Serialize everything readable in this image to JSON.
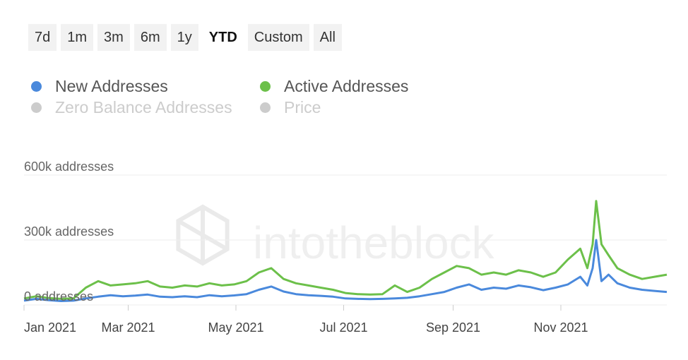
{
  "range_buttons": [
    {
      "label": "7d",
      "active": false
    },
    {
      "label": "1m",
      "active": false
    },
    {
      "label": "3m",
      "active": false
    },
    {
      "label": "6m",
      "active": false
    },
    {
      "label": "1y",
      "active": false
    },
    {
      "label": "YTD",
      "active": true
    },
    {
      "label": "Custom",
      "active": false
    },
    {
      "label": "All",
      "active": false
    }
  ],
  "legend": [
    {
      "name": "New Addresses",
      "color": "#4a89dc",
      "enabled": true
    },
    {
      "name": "Active Addresses",
      "color": "#6cc04a",
      "enabled": true
    },
    {
      "name": "Zero Balance Addresses",
      "color": "#cccccc",
      "enabled": false
    },
    {
      "name": "Price",
      "color": "#cccccc",
      "enabled": false
    }
  ],
  "watermark": "intotheblock",
  "chart_data": {
    "type": "line",
    "y_axis": {
      "ticks": [
        0,
        300000,
        600000
      ],
      "tick_labels": [
        "0 addresses",
        "300k addresses",
        "600k addresses"
      ],
      "ylim": [
        0,
        600000
      ]
    },
    "x_axis": {
      "range": [
        "2021-01-01",
        "2021-12-31"
      ],
      "ticks": [
        "2021-01-01",
        "2021-03-01",
        "2021-05-01",
        "2021-07-01",
        "2021-09-01",
        "2021-11-01"
      ],
      "tick_labels": [
        "Jan 2021",
        "Mar 2021",
        "May 2021",
        "Jul 2021",
        "Sep 2021",
        "Nov 2021"
      ]
    },
    "grid": true,
    "legend_position": "top-left",
    "series": [
      {
        "name": "New Addresses",
        "color": "#4a89dc",
        "points": [
          [
            "2021-01-01",
            20000
          ],
          [
            "2021-01-08",
            28000
          ],
          [
            "2021-01-15",
            22000
          ],
          [
            "2021-01-22",
            18000
          ],
          [
            "2021-01-29",
            20000
          ],
          [
            "2021-02-05",
            30000
          ],
          [
            "2021-02-12",
            38000
          ],
          [
            "2021-02-19",
            45000
          ],
          [
            "2021-02-26",
            40000
          ],
          [
            "2021-03-05",
            43000
          ],
          [
            "2021-03-12",
            48000
          ],
          [
            "2021-03-19",
            38000
          ],
          [
            "2021-03-26",
            36000
          ],
          [
            "2021-04-02",
            40000
          ],
          [
            "2021-04-09",
            36000
          ],
          [
            "2021-04-16",
            45000
          ],
          [
            "2021-04-23",
            40000
          ],
          [
            "2021-04-30",
            44000
          ],
          [
            "2021-05-07",
            50000
          ],
          [
            "2021-05-14",
            70000
          ],
          [
            "2021-05-21",
            85000
          ],
          [
            "2021-05-28",
            62000
          ],
          [
            "2021-06-04",
            50000
          ],
          [
            "2021-06-11",
            45000
          ],
          [
            "2021-06-18",
            42000
          ],
          [
            "2021-06-25",
            38000
          ],
          [
            "2021-07-02",
            30000
          ],
          [
            "2021-07-09",
            28000
          ],
          [
            "2021-07-16",
            27000
          ],
          [
            "2021-07-23",
            28000
          ],
          [
            "2021-07-30",
            30000
          ],
          [
            "2021-08-06",
            33000
          ],
          [
            "2021-08-13",
            40000
          ],
          [
            "2021-08-20",
            50000
          ],
          [
            "2021-08-27",
            60000
          ],
          [
            "2021-09-03",
            80000
          ],
          [
            "2021-09-10",
            95000
          ],
          [
            "2021-09-17",
            70000
          ],
          [
            "2021-09-24",
            80000
          ],
          [
            "2021-10-01",
            75000
          ],
          [
            "2021-10-08",
            90000
          ],
          [
            "2021-10-15",
            82000
          ],
          [
            "2021-10-22",
            68000
          ],
          [
            "2021-10-29",
            80000
          ],
          [
            "2021-11-05",
            95000
          ],
          [
            "2021-11-12",
            130000
          ],
          [
            "2021-11-16",
            90000
          ],
          [
            "2021-11-19",
            170000
          ],
          [
            "2021-11-21",
            300000
          ],
          [
            "2021-11-24",
            110000
          ],
          [
            "2021-11-28",
            140000
          ],
          [
            "2021-12-03",
            100000
          ],
          [
            "2021-12-10",
            80000
          ],
          [
            "2021-12-17",
            70000
          ],
          [
            "2021-12-24",
            65000
          ],
          [
            "2021-12-31",
            60000
          ]
        ]
      },
      {
        "name": "Active Addresses",
        "color": "#6cc04a",
        "points": [
          [
            "2021-01-01",
            30000
          ],
          [
            "2021-01-08",
            40000
          ],
          [
            "2021-01-15",
            32000
          ],
          [
            "2021-01-22",
            28000
          ],
          [
            "2021-01-29",
            30000
          ],
          [
            "2021-02-05",
            80000
          ],
          [
            "2021-02-12",
            110000
          ],
          [
            "2021-02-19",
            90000
          ],
          [
            "2021-02-26",
            95000
          ],
          [
            "2021-03-05",
            100000
          ],
          [
            "2021-03-12",
            110000
          ],
          [
            "2021-03-19",
            85000
          ],
          [
            "2021-03-26",
            80000
          ],
          [
            "2021-04-02",
            90000
          ],
          [
            "2021-04-09",
            85000
          ],
          [
            "2021-04-16",
            100000
          ],
          [
            "2021-04-23",
            90000
          ],
          [
            "2021-04-30",
            95000
          ],
          [
            "2021-05-07",
            110000
          ],
          [
            "2021-05-14",
            150000
          ],
          [
            "2021-05-21",
            170000
          ],
          [
            "2021-05-28",
            120000
          ],
          [
            "2021-06-04",
            100000
          ],
          [
            "2021-06-11",
            90000
          ],
          [
            "2021-06-18",
            80000
          ],
          [
            "2021-06-25",
            70000
          ],
          [
            "2021-07-02",
            55000
          ],
          [
            "2021-07-09",
            50000
          ],
          [
            "2021-07-16",
            48000
          ],
          [
            "2021-07-23",
            50000
          ],
          [
            "2021-07-30",
            90000
          ],
          [
            "2021-08-06",
            60000
          ],
          [
            "2021-08-13",
            80000
          ],
          [
            "2021-08-20",
            120000
          ],
          [
            "2021-08-27",
            150000
          ],
          [
            "2021-09-03",
            180000
          ],
          [
            "2021-09-10",
            170000
          ],
          [
            "2021-09-17",
            140000
          ],
          [
            "2021-09-24",
            150000
          ],
          [
            "2021-10-01",
            140000
          ],
          [
            "2021-10-08",
            160000
          ],
          [
            "2021-10-15",
            150000
          ],
          [
            "2021-10-22",
            130000
          ],
          [
            "2021-10-29",
            150000
          ],
          [
            "2021-11-05",
            210000
          ],
          [
            "2021-11-12",
            260000
          ],
          [
            "2021-11-16",
            170000
          ],
          [
            "2021-11-19",
            280000
          ],
          [
            "2021-11-21",
            480000
          ],
          [
            "2021-11-24",
            280000
          ],
          [
            "2021-11-28",
            230000
          ],
          [
            "2021-12-03",
            170000
          ],
          [
            "2021-12-10",
            140000
          ],
          [
            "2021-12-17",
            120000
          ],
          [
            "2021-12-24",
            130000
          ],
          [
            "2021-12-31",
            140000
          ]
        ]
      }
    ]
  }
}
